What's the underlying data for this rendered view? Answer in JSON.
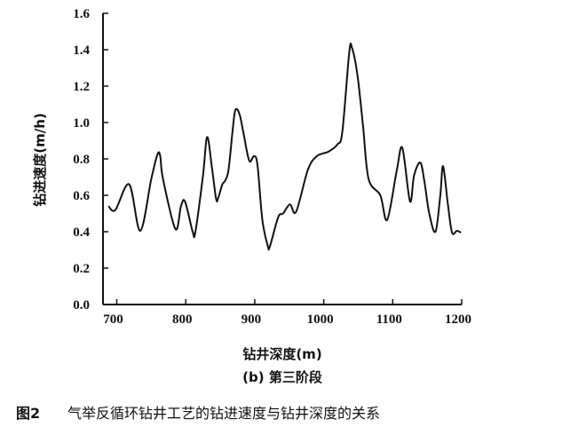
{
  "chart_data": {
    "type": "line",
    "subtitle": "(b) 第三阶段",
    "caption": "图2 气举反循环钻井工艺的钻进速度与钻井深度的关系",
    "caption_label": "图2",
    "caption_text": "气举反循环钻井工艺的钻进速度与钻井深度的关系",
    "xlabel": "钻井深度(m)",
    "ylabel": "钻进速度(m/h)",
    "xlim": [
      680,
      1200
    ],
    "ylim": [
      0,
      1.6
    ],
    "xticks": [
      700,
      800,
      900,
      1000,
      1100,
      1200
    ],
    "yticks": [
      "0.0",
      "0.2",
      "0.4",
      "0.6",
      "0.8",
      "1.0",
      "1.2",
      "1.4",
      "1.6"
    ],
    "grid": false,
    "line_color": "#111111",
    "x": [
      688,
      698,
      718,
      734,
      750,
      759,
      763,
      767,
      785,
      793,
      799,
      810,
      814,
      825,
      831,
      838,
      844,
      847,
      853,
      857,
      862,
      868,
      872,
      878,
      884,
      892,
      899,
      904,
      911,
      919,
      922,
      934,
      941,
      951,
      960,
      977,
      990,
      1007,
      1020,
      1027,
      1037,
      1041,
      1049,
      1057,
      1065,
      1082,
      1092,
      1106,
      1114,
      1125,
      1131,
      1140,
      1146,
      1153,
      1162,
      1169,
      1173,
      1180,
      1186,
      1193,
      1199
    ],
    "y": [
      0.54,
      0.52,
      0.66,
      0.405,
      0.69,
      0.825,
      0.815,
      0.69,
      0.415,
      0.54,
      0.565,
      0.4,
      0.4,
      0.71,
      0.92,
      0.75,
      0.58,
      0.585,
      0.66,
      0.68,
      0.74,
      0.96,
      1.07,
      1.045,
      0.935,
      0.79,
      0.815,
      0.765,
      0.465,
      0.32,
      0.32,
      0.48,
      0.5,
      0.55,
      0.51,
      0.74,
      0.815,
      0.84,
      0.88,
      0.95,
      1.385,
      1.41,
      1.257,
      0.98,
      0.69,
      0.6,
      0.465,
      0.74,
      0.86,
      0.567,
      0.71,
      0.78,
      0.675,
      0.5,
      0.4,
      0.6,
      0.76,
      0.55,
      0.395,
      0.405,
      0.395
    ]
  }
}
